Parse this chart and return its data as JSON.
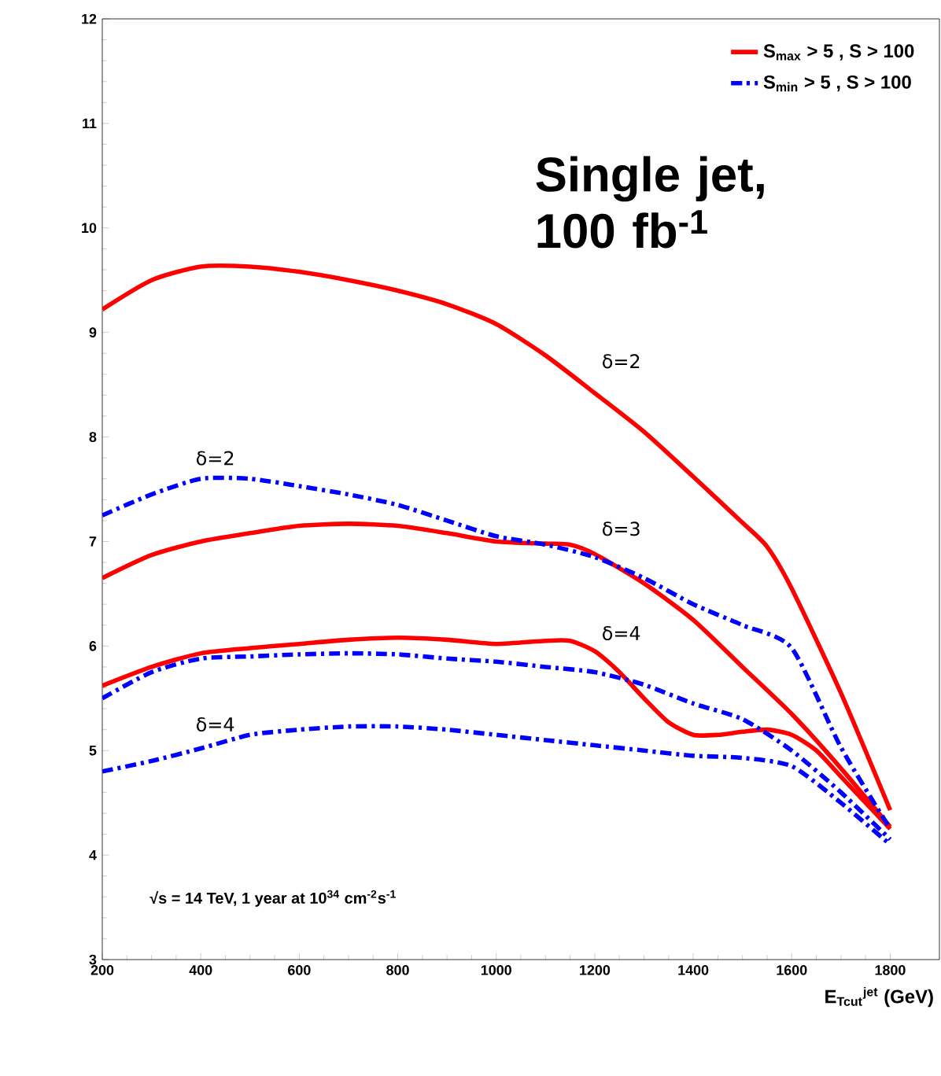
{
  "chart_data": {
    "type": "line",
    "xlabel": "E$_{Tcut}$$^{jet}$ (GeV)",
    "xlim": [
      200,
      1900
    ],
    "ylim": [
      3,
      12
    ],
    "xticks": [
      200,
      400,
      600,
      800,
      1000,
      1200,
      1400,
      1600,
      1800
    ],
    "yticks": [
      3,
      4,
      5,
      6,
      7,
      8,
      9,
      10,
      11,
      12
    ],
    "grid": false,
    "legend": "top right",
    "series": [
      {
        "name": "S$_{max}$ > 5 , S > 100",
        "color": "#ff0000",
        "line_style": "solid",
        "x": [
          200,
          300,
          400,
          500,
          600,
          700,
          800,
          900,
          1000,
          1100,
          1200,
          1300,
          1400,
          1500,
          1550,
          1600,
          1700,
          1800
        ],
        "values": [
          9.22,
          9.5,
          9.63,
          9.63,
          9.58,
          9.5,
          9.4,
          9.27,
          9.08,
          8.78,
          8.42,
          8.05,
          7.62,
          7.18,
          6.95,
          6.55,
          5.55,
          4.43
        ]
      },
      {
        "color": "#ff0000",
        "line_style": "solid",
        "x": [
          200,
          300,
          400,
          500,
          600,
          700,
          800,
          900,
          1000,
          1100,
          1150,
          1200,
          1300,
          1400,
          1500,
          1600,
          1700,
          1800
        ],
        "values": [
          6.65,
          6.87,
          7.0,
          7.08,
          7.15,
          7.17,
          7.15,
          7.08,
          7.0,
          6.98,
          6.97,
          6.88,
          6.6,
          6.25,
          5.8,
          5.35,
          4.83,
          4.27
        ]
      },
      {
        "color": "#ff0000",
        "line_style": "solid",
        "x": [
          200,
          300,
          400,
          500,
          600,
          700,
          800,
          900,
          1000,
          1100,
          1150,
          1200,
          1250,
          1300,
          1350,
          1400,
          1450,
          1500,
          1550,
          1600,
          1650,
          1700,
          1800
        ],
        "values": [
          5.62,
          5.8,
          5.93,
          5.98,
          6.02,
          6.06,
          6.08,
          6.06,
          6.02,
          6.05,
          6.05,
          5.95,
          5.75,
          5.5,
          5.27,
          5.15,
          5.15,
          5.18,
          5.2,
          5.15,
          5.0,
          4.75,
          4.25
        ]
      },
      {
        "name": "S$_{min}$ > 5 , S > 100",
        "color": "#0000ff",
        "line_style": "dashed",
        "x": [
          200,
          300,
          400,
          500,
          600,
          700,
          800,
          900,
          1000,
          1100,
          1200,
          1300,
          1400,
          1500,
          1600,
          1700,
          1800
        ],
        "values": [
          7.25,
          7.45,
          7.6,
          7.6,
          7.53,
          7.45,
          7.35,
          7.2,
          7.05,
          6.97,
          6.85,
          6.65,
          6.4,
          6.2,
          5.98,
          5.03,
          4.25
        ]
      },
      {
        "color": "#0000ff",
        "line_style": "dashed",
        "x": [
          200,
          300,
          400,
          500,
          600,
          700,
          800,
          900,
          1000,
          1100,
          1200,
          1300,
          1400,
          1500,
          1600,
          1700,
          1800
        ],
        "values": [
          5.5,
          5.75,
          5.88,
          5.9,
          5.92,
          5.93,
          5.92,
          5.88,
          5.85,
          5.8,
          5.75,
          5.63,
          5.45,
          5.3,
          5.0,
          4.6,
          4.15
        ]
      },
      {
        "color": "#0000ff",
        "line_style": "dashed",
        "x": [
          200,
          300,
          400,
          500,
          600,
          700,
          800,
          900,
          1000,
          1100,
          1200,
          1300,
          1400,
          1500,
          1600,
          1700,
          1800
        ],
        "values": [
          4.8,
          4.9,
          5.02,
          5.15,
          5.2,
          5.23,
          5.23,
          5.2,
          5.15,
          5.1,
          5.05,
          5.0,
          4.95,
          4.93,
          4.85,
          4.5,
          4.1
        ]
      }
    ],
    "annotations": [
      "δ=2",
      "δ=2",
      "δ=3",
      "δ=4",
      "δ=4",
      "Single jet, 100 fb$^{-1}$",
      "√s = 14 TeV, 1 year at 10$^{34}$ cm$^{-2}$s$^{-1}$"
    ]
  }
}
